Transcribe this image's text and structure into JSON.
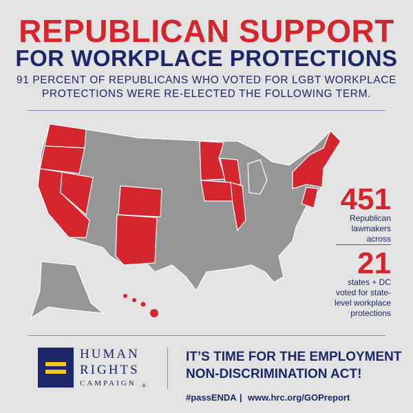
{
  "header": {
    "title_line1": "REPUBLICAN SUPPORT",
    "title_line2": "FOR WORKPLACE PROTECTIONS",
    "subtitle_lines": [
      "91 PERCENT OF REPUBLICANS WHO VOTED FOR LGBT WORKPLACE",
      "PROTECTIONS WERE RE-ELECTED THE FOLLOWING TERM."
    ]
  },
  "stats": [
    {
      "number": 451,
      "label_lines": [
        "Republican",
        "lawmakers",
        "across"
      ]
    },
    {
      "number": 21,
      "label_lines": [
        "states + DC",
        "voted for state-",
        "level workplace",
        "protections"
      ]
    }
  ],
  "footer": {
    "logo_lines": [
      "HUMAN",
      "RIGHTS",
      "CAMPAIGN"
    ],
    "registered": "®",
    "call_lines": [
      "IT’S TIME FOR THE EMPLOYMENT",
      "NON-DISCRIMINATION ACT!"
    ],
    "hashtag": "#passENDA",
    "url": "www.hrc.org/GOPreport"
  }
}
